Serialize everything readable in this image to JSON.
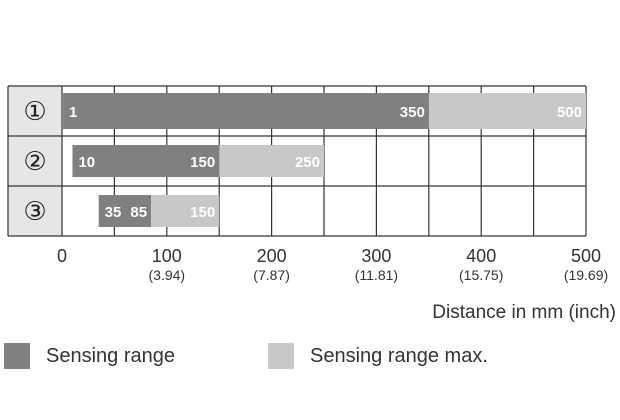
{
  "chart_data": {
    "type": "bar",
    "orientation": "horizontal-range",
    "title": "",
    "xlabel": "Distance in mm (inch)",
    "ylabel": "",
    "xlim": [
      0,
      500
    ],
    "grid": true,
    "x_ticks": [
      {
        "value": 0,
        "label": "0",
        "sublabel": ""
      },
      {
        "value": 100,
        "label": "100",
        "sublabel": "(3.94)"
      },
      {
        "value": 200,
        "label": "200",
        "sublabel": "(7.87)"
      },
      {
        "value": 300,
        "label": "300",
        "sublabel": "(11.81)"
      },
      {
        "value": 400,
        "label": "400",
        "sublabel": "(15.75)"
      },
      {
        "value": 500,
        "label": "500",
        "sublabel": "(19.69)"
      }
    ],
    "categories": [
      "①",
      "②",
      "③"
    ],
    "series": [
      {
        "name": "Sensing range",
        "color": "#808080",
        "ranges": [
          [
            1,
            350
          ],
          [
            10,
            150
          ],
          [
            35,
            85
          ]
        ]
      },
      {
        "name": "Sensing range max.",
        "color": "#c8c8c8",
        "ranges": [
          [
            350,
            500
          ],
          [
            150,
            250
          ],
          [
            85,
            150
          ]
        ]
      }
    ],
    "bar_labels": [
      [
        "1",
        "350",
        "500"
      ],
      [
        "10",
        "150",
        "250"
      ],
      [
        "35",
        "85",
        "150"
      ]
    ],
    "legend_position": "bottom"
  },
  "legend": [
    {
      "label": "Sensing range",
      "color": "#808080"
    },
    {
      "label": "Sensing range max.",
      "color": "#c8c8c8"
    }
  ]
}
